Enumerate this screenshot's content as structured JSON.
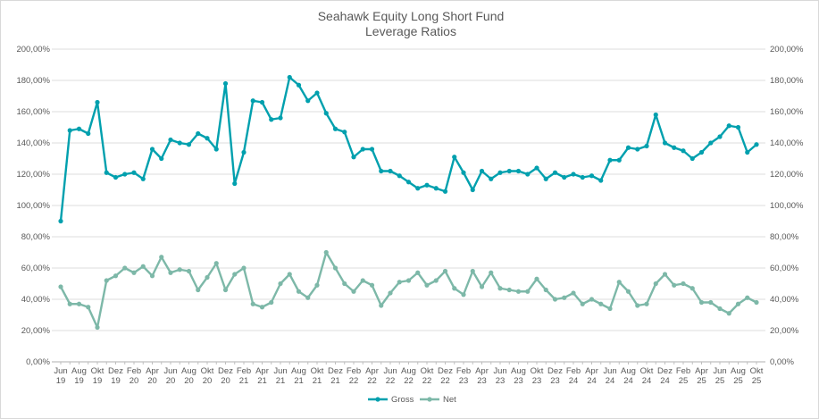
{
  "chart_data": {
    "type": "line",
    "title": "Seahawk Equity Long Short Fund",
    "subtitle": "Leverage Ratios",
    "xlabel": "",
    "ylabel": "",
    "ylim": [
      0,
      200
    ],
    "y_ticks": [
      "0,00%",
      "20,00%",
      "40,00%",
      "60,00%",
      "80,00%",
      "100,00%",
      "120,00%",
      "140,00%",
      "160,00%",
      "180,00%",
      "200,00%"
    ],
    "secondary_axis_mirrors_primary": true,
    "grid": true,
    "legend_position": "bottom",
    "x": [
      "Jun 19",
      "Jul 19",
      "Aug 19",
      "Sep 19",
      "Okt 19",
      "Nov 19",
      "Dez 19",
      "Jan 20",
      "Feb 20",
      "Mär 20",
      "Apr 20",
      "Mai 20",
      "Jun 20",
      "Jul 20",
      "Aug 20",
      "Sep 20",
      "Okt 20",
      "Nov 20",
      "Dez 20",
      "Jan 21",
      "Feb 21",
      "Mär 21",
      "Apr 21",
      "Mai 21",
      "Jun 21",
      "Jul 21",
      "Aug 21",
      "Sep 21",
      "Okt 21",
      "Nov 21",
      "Dez 21",
      "Jan 22",
      "Feb 22",
      "Mär 22",
      "Apr 22",
      "Mai 22",
      "Jun 22",
      "Jul 22",
      "Aug 22",
      "Sep 22",
      "Okt 22",
      "Nov 22",
      "Dez 22",
      "Jan 23",
      "Feb 23",
      "Mär 23",
      "Apr 23",
      "Mai 23",
      "Jun 23",
      "Jul 23",
      "Aug 23",
      "Sep 23",
      "Okt 23",
      "Nov 23",
      "Dez 23",
      "Jan 24",
      "Feb 24",
      "Mär 24",
      "Apr 24",
      "Mai 24",
      "Jun 24",
      "Jul 24",
      "Aug 24",
      "Sep 24",
      "Okt 24",
      "Nov 24",
      "Dez 24",
      "Jan 25",
      "Feb 25",
      "Mär 25",
      "Apr 25",
      "Mai 25",
      "Jun 25",
      "Jul 25",
      "Aug 25",
      "Sep 25",
      "Okt 25"
    ],
    "x_tick_labels": [
      [
        "Jun",
        "19"
      ],
      [
        "Aug",
        "19"
      ],
      [
        "Okt",
        "19"
      ],
      [
        "Dez",
        "19"
      ],
      [
        "Feb",
        "20"
      ],
      [
        "Apr",
        "20"
      ],
      [
        "Jun",
        "20"
      ],
      [
        "Aug",
        "20"
      ],
      [
        "Okt",
        "20"
      ],
      [
        "Dez",
        "20"
      ],
      [
        "Feb",
        "21"
      ],
      [
        "Apr",
        "21"
      ],
      [
        "Jun",
        "21"
      ],
      [
        "Aug",
        "21"
      ],
      [
        "Okt",
        "21"
      ],
      [
        "Dez",
        "21"
      ],
      [
        "Feb",
        "22"
      ],
      [
        "Apr",
        "22"
      ],
      [
        "Jun",
        "22"
      ],
      [
        "Aug",
        "22"
      ],
      [
        "Okt",
        "22"
      ],
      [
        "Dez",
        "22"
      ],
      [
        "Feb",
        "23"
      ],
      [
        "Apr",
        "23"
      ],
      [
        "Jun",
        "23"
      ],
      [
        "Aug",
        "23"
      ],
      [
        "Okt",
        "23"
      ],
      [
        "Dez",
        "23"
      ],
      [
        "Feb",
        "24"
      ],
      [
        "Apr",
        "24"
      ],
      [
        "Jun",
        "24"
      ],
      [
        "Aug",
        "24"
      ],
      [
        "Okt",
        "24"
      ],
      [
        "Dez",
        "24"
      ],
      [
        "Feb",
        "25"
      ],
      [
        "Apr",
        "25"
      ],
      [
        "Jun",
        "25"
      ],
      [
        "Aug",
        "25"
      ],
      [
        "Okt",
        "25"
      ]
    ],
    "series": [
      {
        "name": "Gross",
        "color": "#00A0AE",
        "values": [
          90,
          148,
          149,
          146,
          166,
          121,
          118,
          120,
          121,
          117,
          136,
          130,
          142,
          140,
          139,
          146,
          143,
          136,
          178,
          114,
          134,
          167,
          166,
          155,
          156,
          182,
          177,
          167,
          172,
          159,
          149,
          147,
          131,
          136,
          136,
          122,
          122,
          119,
          115,
          111,
          113,
          111,
          109,
          131,
          121,
          110,
          122,
          117,
          121,
          122,
          122,
          120,
          124,
          117,
          121,
          118,
          120,
          118,
          119,
          116,
          129,
          129,
          137,
          136,
          138,
          158,
          140,
          137,
          135,
          130,
          134,
          140,
          144,
          151,
          150,
          134,
          139
        ]
      },
      {
        "name": "Net",
        "color": "#7DB8A8",
        "values": [
          48,
          37,
          37,
          35,
          22,
          52,
          55,
          60,
          57,
          61,
          55,
          67,
          57,
          59,
          58,
          46,
          54,
          63,
          46,
          56,
          60,
          37,
          35,
          38,
          50,
          56,
          45,
          41,
          49,
          70,
          60,
          50,
          45,
          52,
          49,
          36,
          44,
          51,
          52,
          57,
          49,
          52,
          58,
          47,
          43,
          58,
          48,
          57,
          47,
          46,
          45,
          45,
          53,
          46,
          40,
          41,
          44,
          37,
          40,
          37,
          34,
          51,
          45,
          36,
          37,
          50,
          56,
          49,
          50,
          47,
          38,
          38,
          34,
          31,
          37,
          41,
          38
        ]
      }
    ]
  }
}
